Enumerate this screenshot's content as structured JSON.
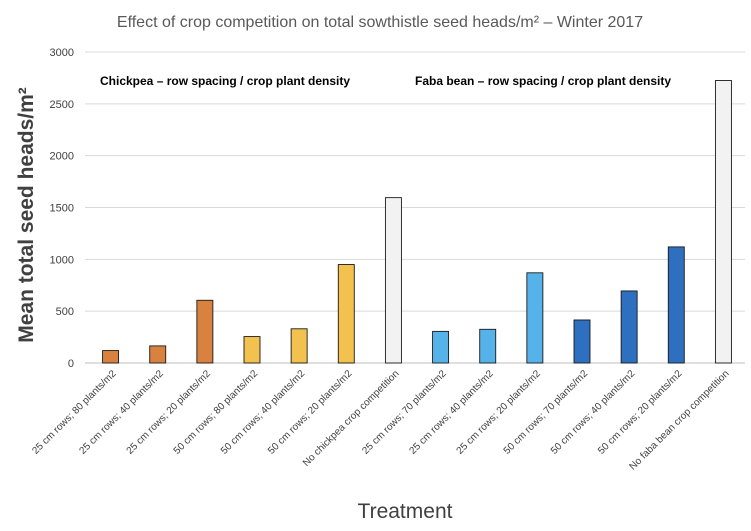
{
  "chart_data": {
    "type": "bar",
    "title": "Effect of crop competition on total sowthistle seed heads/m² – Winter 2017",
    "xlabel": "Treatment",
    "ylabel": "Mean total seed heads/m²",
    "ylim": [
      0,
      3000
    ],
    "yticks": [
      0,
      500,
      1000,
      1500,
      2000,
      2500,
      3000
    ],
    "grid": true,
    "legend": "none",
    "annotations": [
      "Chickpea – row spacing / crop plant density",
      "Faba bean – row spacing / crop plant density"
    ],
    "categories": [
      "25 cm rows; 80 plants/m2",
      "25 cm rows; 40 plants/m2",
      "25 cm rows; 20 plants/m2",
      "50 cm rows; 80 plants/m2",
      "50 cm rows; 40 plants/m2",
      "50 cm rows; 20 plants/m2",
      "No chickpea crop competition",
      "25 cm rows; 70 plants/m2",
      "25 cm rows; 40 plants/m2",
      "25 cm rows; 20 plants/m2",
      "50 cm rows; 70 plants/m2",
      "50 cm rows; 40 plants/m2",
      "50 cm rows; 20 plants/m2",
      "No faba bean crop competition"
    ],
    "values": [
      120,
      165,
      605,
      255,
      330,
      950,
      1595,
      305,
      325,
      870,
      415,
      695,
      1120,
      2725
    ],
    "colors": [
      "#d9823f",
      "#d9823f",
      "#d9823f",
      "#f2c14e",
      "#f2c14e",
      "#f2c14e",
      "#f2f2f2",
      "#56b3ea",
      "#56b3ea",
      "#56b3ea",
      "#2e6fc0",
      "#2e6fc0",
      "#2e6fc0",
      "#f2f2f2"
    ]
  }
}
